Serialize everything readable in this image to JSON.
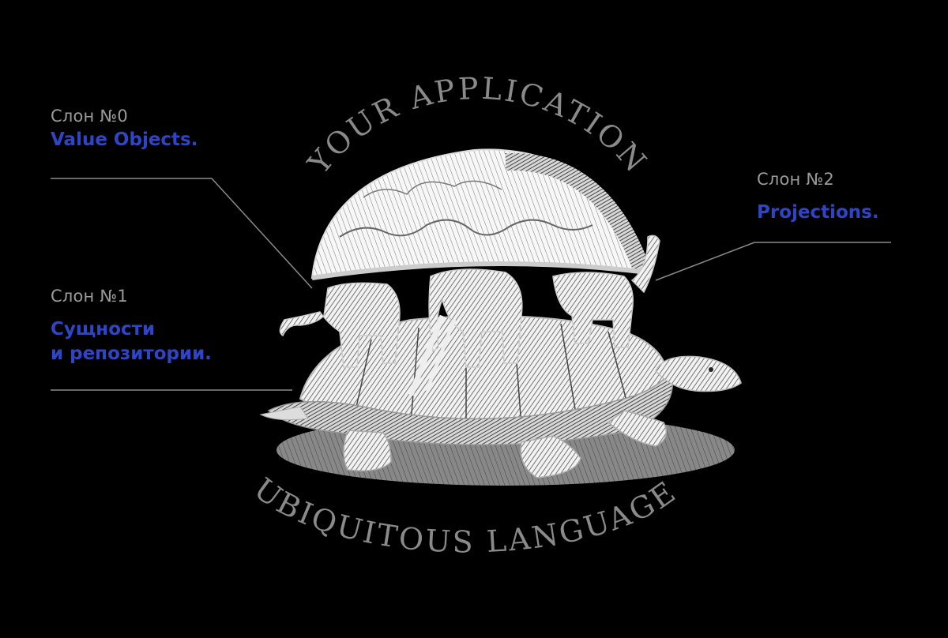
{
  "arc_top_text": "YOUR APPLICATION",
  "arc_bottom_text": "UBIQUITOUS LANGUAGE",
  "elephants": [
    {
      "caption": "Слон №0",
      "title_lines": [
        "Value Objects."
      ]
    },
    {
      "caption": "Слон №1",
      "title_lines": [
        "Сущности",
        "и репозитории."
      ]
    },
    {
      "caption": "Слон №2",
      "title_lines": [
        "Projections."
      ]
    }
  ],
  "colors": {
    "background": "#000000",
    "caption": "#9a9a9a",
    "title": "#2f45c8",
    "arc_text": "#8a8a8a",
    "leader_line": "#8a8a8a"
  }
}
